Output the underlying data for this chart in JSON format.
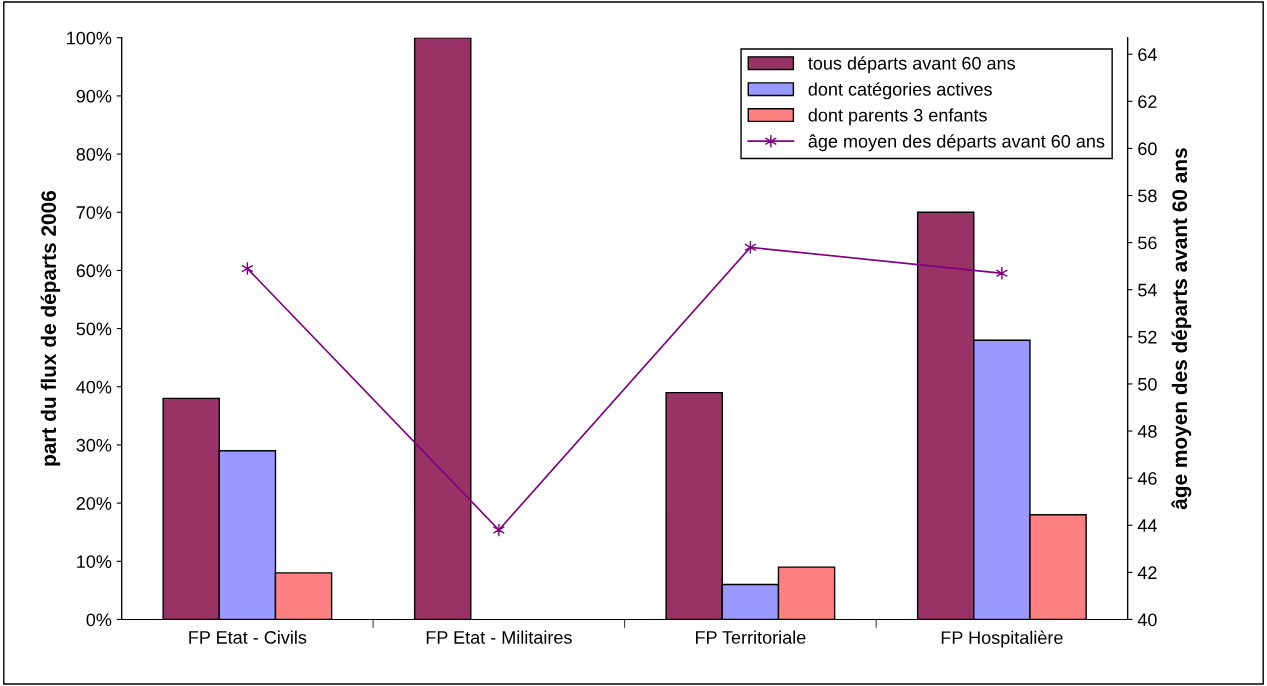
{
  "chart_data": {
    "type": "bar",
    "ylabel": "part du flux de départs 2006",
    "y2label": "âge moyen des départs avant 60 ans",
    "categories": [
      "FP Etat - Civils",
      "FP Etat - Militaires",
      "FP Territoriale",
      "FP Hospitalière"
    ],
    "series": [
      {
        "name": "tous départs avant 60 ans",
        "color": "#993366",
        "values": [
          38,
          100,
          39,
          70
        ]
      },
      {
        "name": "dont catégories actives",
        "color": "#9999ff",
        "values": [
          29,
          null,
          6,
          48
        ]
      },
      {
        "name": "dont parents 3 enfants",
        "color": "#ff8080",
        "values": [
          8,
          null,
          9,
          18
        ]
      },
      {
        "name": "âge moyen des départs avant 60 ans",
        "type": "line",
        "axis": "y2",
        "color": "#800080",
        "marker": "cross",
        "values": [
          54.9,
          43.8,
          55.8,
          54.7
        ]
      }
    ],
    "ylim": [
      0,
      100
    ],
    "yticks": [
      {
        "value": 0,
        "label": "0%"
      },
      {
        "value": 10,
        "label": "10%"
      },
      {
        "value": 20,
        "label": "20%"
      },
      {
        "value": 30,
        "label": "30%"
      },
      {
        "value": 40,
        "label": "40%"
      },
      {
        "value": 50,
        "label": "50%"
      },
      {
        "value": 60,
        "label": "60%"
      },
      {
        "value": 70,
        "label": "70%"
      },
      {
        "value": 80,
        "label": "80%"
      },
      {
        "value": 90,
        "label": "90%"
      },
      {
        "value": 100,
        "label": "100%"
      }
    ],
    "y2lim": [
      40,
      64.7
    ],
    "y2ticks": [
      40,
      42,
      44,
      46,
      48,
      50,
      52,
      54,
      56,
      58,
      60,
      62,
      64
    ],
    "grid": false,
    "legend": "top right"
  }
}
